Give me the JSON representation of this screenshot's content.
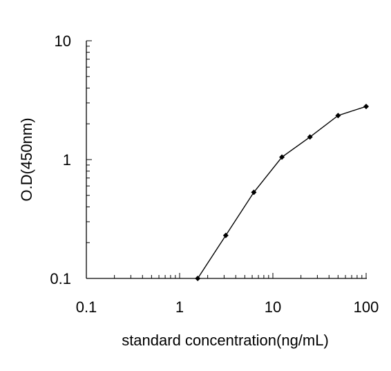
{
  "chart_data": {
    "type": "line",
    "xlabel": "standard concentration(ng/mL)",
    "ylabel": "O.D(450nm)",
    "x_scale": "log",
    "y_scale": "log",
    "xlim": [
      0.1,
      100
    ],
    "ylim": [
      0.1,
      10
    ],
    "x_ticks": [
      {
        "value": 0.1,
        "label": "0.1"
      },
      {
        "value": 1,
        "label": "1"
      },
      {
        "value": 10,
        "label": "10"
      },
      {
        "value": 100,
        "label": "100"
      }
    ],
    "y_ticks": [
      {
        "value": 0.1,
        "label": "0.1"
      },
      {
        "value": 1,
        "label": "1"
      },
      {
        "value": 10,
        "label": "10"
      }
    ],
    "grid": false,
    "series": [
      {
        "color": "#000000",
        "marker": "diamond",
        "points": [
          {
            "x": 1.5625,
            "y": 0.1
          },
          {
            "x": 3.125,
            "y": 0.23
          },
          {
            "x": 6.25,
            "y": 0.53
          },
          {
            "x": 12.5,
            "y": 1.05
          },
          {
            "x": 25,
            "y": 1.55
          },
          {
            "x": 50,
            "y": 2.35
          },
          {
            "x": 100,
            "y": 2.8
          }
        ]
      }
    ]
  }
}
